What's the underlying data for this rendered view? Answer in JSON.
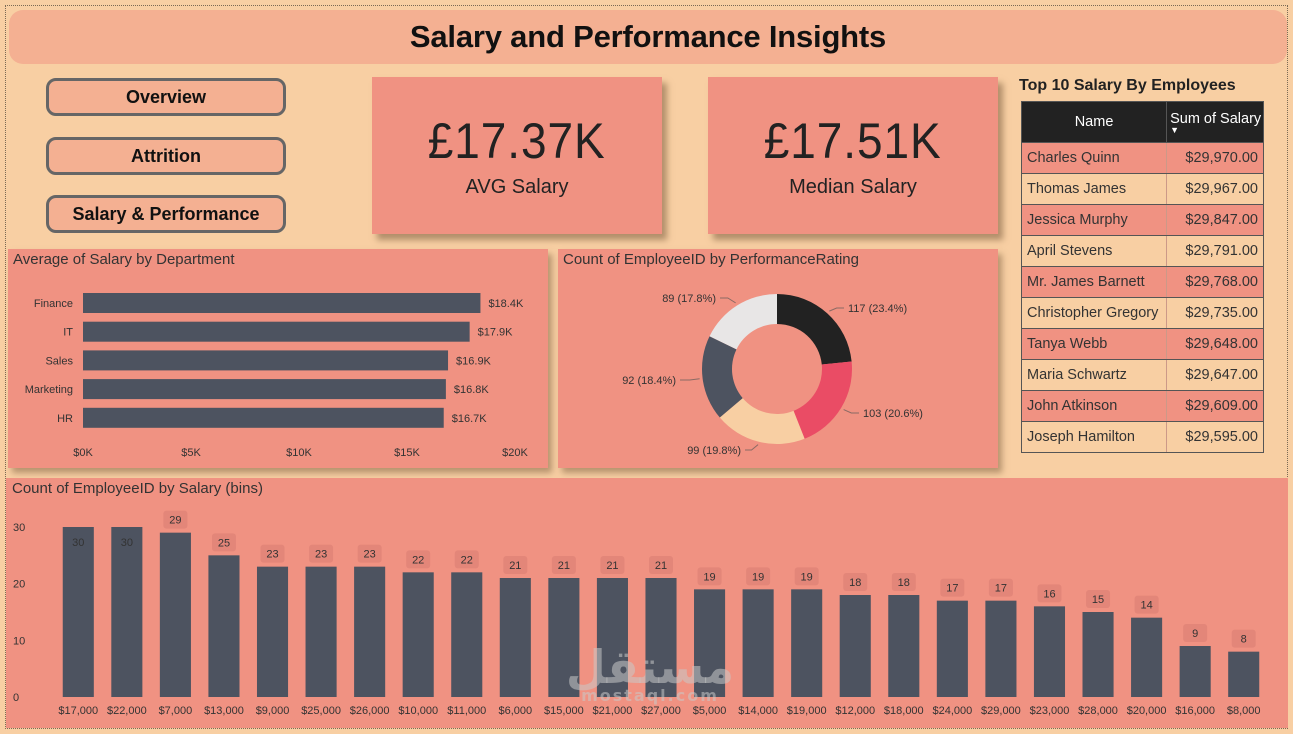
{
  "header": {
    "title": "Salary and Performance Insights"
  },
  "nav": {
    "buttons": [
      {
        "label": "Overview"
      },
      {
        "label": "Attrition"
      },
      {
        "label": "Salary & Performance"
      }
    ]
  },
  "kpis": [
    {
      "value": "£17.37K",
      "label": "AVG Salary"
    },
    {
      "value": "£17.51K",
      "label": "Median Salary"
    }
  ],
  "top10": {
    "title": "Top 10 Salary By Employees",
    "columns": [
      "Name",
      "Sum of Salary"
    ],
    "sort_indicator": "▼",
    "rows": [
      {
        "name": "Charles Quinn",
        "salary": "$29,970.00"
      },
      {
        "name": "Thomas James",
        "salary": "$29,967.00"
      },
      {
        "name": "Jessica Murphy",
        "salary": "$29,847.00"
      },
      {
        "name": "April Stevens",
        "salary": "$29,791.00"
      },
      {
        "name": "Mr. James Barnett",
        "salary": "$29,768.00"
      },
      {
        "name": "Christopher Gregory",
        "salary": "$29,735.00"
      },
      {
        "name": "Tanya Webb",
        "salary": "$29,648.00"
      },
      {
        "name": "Maria Schwartz",
        "salary": "$29,647.00"
      },
      {
        "name": "John Atkinson",
        "salary": "$29,609.00"
      },
      {
        "name": "Joseph Hamilton",
        "salary": "$29,595.00"
      }
    ]
  },
  "colors": {
    "background": "#f8cfa3",
    "panel": "#f09282",
    "title_bar": "#f4b092",
    "bar": "#4d5360",
    "donut": [
      "#222222",
      "#ea4c65",
      "#f8cfa3",
      "#4d5360",
      "#e8e6e6"
    ]
  },
  "watermark": {
    "arabic": "مستقل",
    "latin": "mostaql.com"
  },
  "chart_data": [
    {
      "id": "dept",
      "type": "bar",
      "orientation": "horizontal",
      "title": "Average of Salary by Department",
      "categories": [
        "Finance",
        "IT",
        "Sales",
        "Marketing",
        "HR"
      ],
      "values": [
        18400,
        17900,
        16900,
        16800,
        16700
      ],
      "data_labels": [
        "$18.4K",
        "$17.9K",
        "$16.9K",
        "$16.8K",
        "$16.7K"
      ],
      "xlim": [
        0,
        20000
      ],
      "xticks": [
        0,
        5000,
        10000,
        15000,
        20000
      ],
      "xtick_labels": [
        "$0K",
        "$5K",
        "$10K",
        "$15K",
        "$20K"
      ],
      "xlabel": "",
      "ylabel": "",
      "grid": false
    },
    {
      "id": "perf",
      "type": "pie",
      "donut": true,
      "title": "Count of EmployeeID by PerformanceRating",
      "values": [
        117,
        103,
        99,
        92,
        89
      ],
      "labels": [
        "117 (23.4%)",
        "103 (20.6%)",
        "99 (19.8%)",
        "92 (18.4%)",
        "89 (17.8%)"
      ],
      "legend": "none"
    },
    {
      "id": "bins",
      "type": "bar",
      "title": "Count of EmployeeID by Salary (bins)",
      "categories": [
        "$17,000",
        "$22,000",
        "$7,000",
        "$13,000",
        "$9,000",
        "$25,000",
        "$26,000",
        "$10,000",
        "$11,000",
        "$6,000",
        "$15,000",
        "$21,000",
        "$27,000",
        "$5,000",
        "$14,000",
        "$19,000",
        "$12,000",
        "$18,000",
        "$24,000",
        "$29,000",
        "$23,000",
        "$28,000",
        "$20,000",
        "$16,000",
        "$8,000"
      ],
      "values": [
        30,
        30,
        29,
        25,
        23,
        23,
        23,
        22,
        22,
        21,
        21,
        21,
        21,
        19,
        19,
        19,
        18,
        18,
        17,
        17,
        16,
        15,
        14,
        9,
        8
      ],
      "ylim": [
        0,
        33
      ],
      "yticks": [
        0,
        10,
        20,
        30
      ],
      "xlabel": "",
      "ylabel": "",
      "grid": false
    }
  ]
}
